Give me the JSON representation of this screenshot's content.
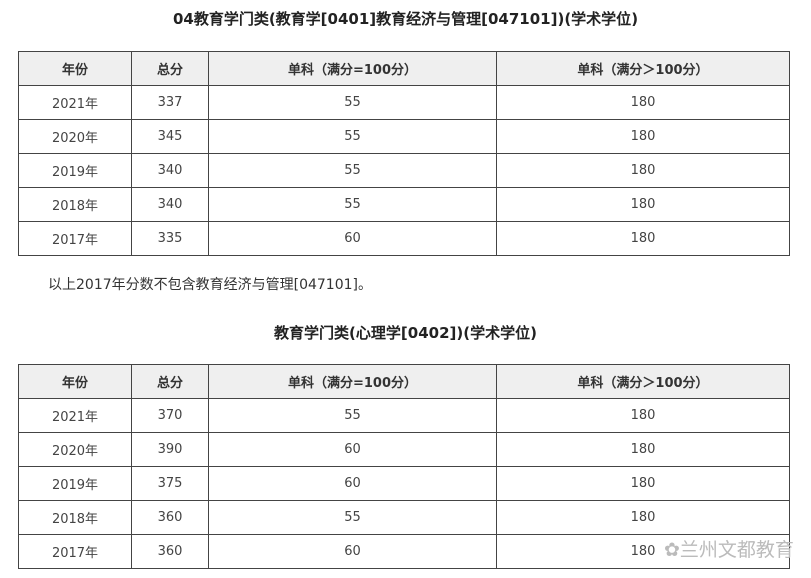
{
  "sections": [
    {
      "title": "04教育学门类(教育学[0401]教育经济与管理[047101])(学术学位)",
      "headers": [
        "年份",
        "总分",
        "单科（满分=100分）",
        "单科（满分＞100分）"
      ],
      "rows": [
        [
          "2021年",
          "337",
          "55",
          "180"
        ],
        [
          "2020年",
          "345",
          "55",
          "180"
        ],
        [
          "2019年",
          "340",
          "55",
          "180"
        ],
        [
          "2018年",
          "340",
          "55",
          "180"
        ],
        [
          "2017年",
          "335",
          "60",
          "180"
        ]
      ]
    },
    {
      "title": "教育学门类(心理学[0402])(学术学位)",
      "headers": [
        "年份",
        "总分",
        "单科（满分=100分）",
        "单科（满分＞100分）"
      ],
      "rows": [
        [
          "2021年",
          "370",
          "55",
          "180"
        ],
        [
          "2020年",
          "390",
          "60",
          "180"
        ],
        [
          "2019年",
          "375",
          "60",
          "180"
        ],
        [
          "2018年",
          "360",
          "55",
          "180"
        ],
        [
          "2017年",
          "360",
          "60",
          "180"
        ]
      ]
    }
  ],
  "note": "以上2017年分数不包含教育经济与管理[047101]。",
  "watermark": "兰州文都教育"
}
